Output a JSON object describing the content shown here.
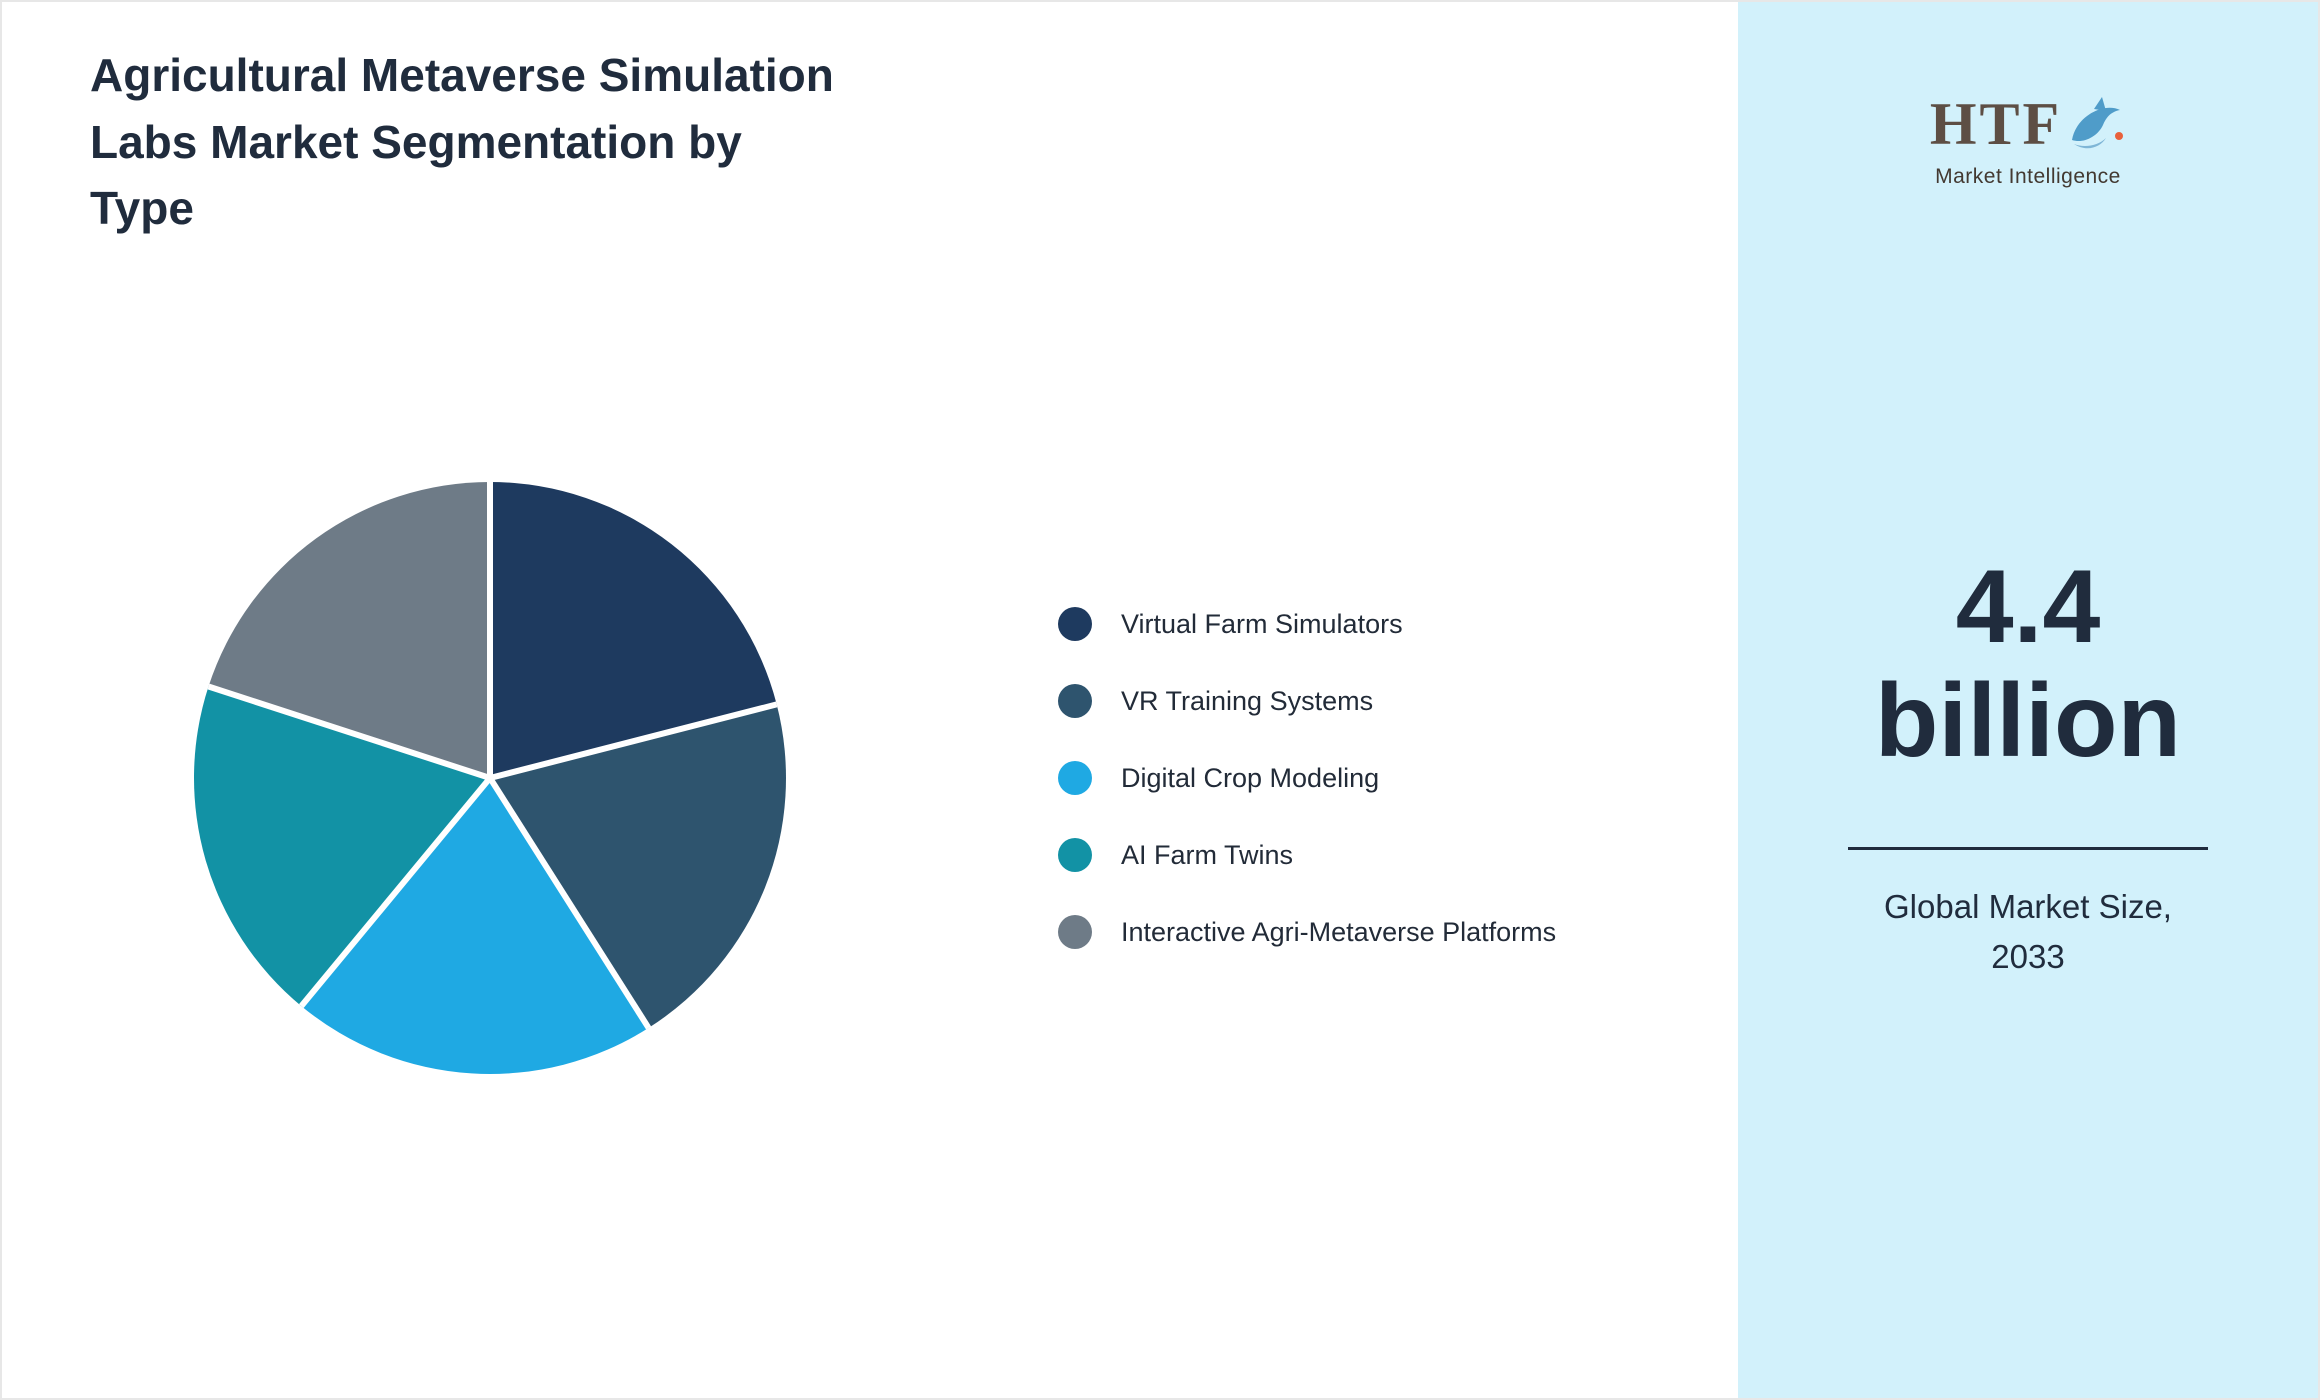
{
  "header": {
    "title": "Agricultural Metaverse Simulation Labs Market Segmentation by Type",
    "title_lines": [
      "Agricultural Metaverse Simulation",
      "Labs Market Segmentation by",
      "Type"
    ]
  },
  "chart_data": {
    "type": "pie",
    "title": "Agricultural Metaverse Simulation Labs Market Segmentation by Type",
    "value_format": "estimated share, percent",
    "start_angle_deg": -90,
    "direction": "clockwise",
    "legend_position": "right",
    "segments": [
      {
        "label": "Virtual Farm Simulators",
        "value": 21,
        "color": "#1e3a5f"
      },
      {
        "label": "VR Training Systems",
        "value": 20,
        "color": "#2e546e"
      },
      {
        "label": "Digital Crop Modeling",
        "value": 20,
        "color": "#1fa9e3"
      },
      {
        "label": "AI Farm Twins",
        "value": 19,
        "color": "#1292a5"
      },
      {
        "label": "Interactive Agri-Metaverse Platforms",
        "value": 20,
        "color": "#6e7b87"
      }
    ]
  },
  "side_panel": {
    "background_color": "#d2f1fb",
    "logo_text": "HTF",
    "logo_subtitle": "Market Intelligence",
    "market_size_value": "4.4",
    "market_size_unit": "billion",
    "caption_line1": "Global Market Size,",
    "caption_line2": "2033"
  }
}
